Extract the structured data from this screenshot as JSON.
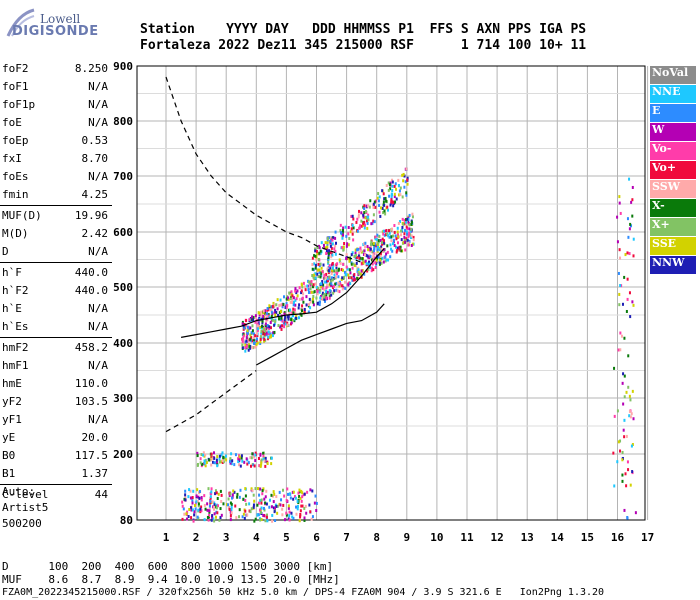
{
  "logo": {
    "line1": "Lowell",
    "line2": "DIGISONDE"
  },
  "header": {
    "line1": "Station    YYYY DAY   DDD HHMMSS P1  FFS S AXN PPS IGA PS",
    "line2": "Fortaleza 2022 Dez11 345 215000 RSF      1 714 100 10+ 11"
  },
  "params": [
    {
      "label": "foF2",
      "value": "8.250"
    },
    {
      "label": "foF1",
      "value": "N/A"
    },
    {
      "label": "foF1p",
      "value": "N/A"
    },
    {
      "label": "foE",
      "value": "N/A"
    },
    {
      "label": "foEp",
      "value": "0.53"
    },
    {
      "label": "fxI",
      "value": "8.70"
    },
    {
      "label": "foEs",
      "value": "N/A"
    },
    {
      "label": "fmin",
      "value": "4.25"
    },
    {
      "sep": true
    },
    {
      "label": "MUF(D)",
      "value": "19.96"
    },
    {
      "label": "M(D)",
      "value": "2.42"
    },
    {
      "label": "D",
      "value": "N/A"
    },
    {
      "sep": true
    },
    {
      "label": "h`F",
      "value": "440.0"
    },
    {
      "label": "h`F2",
      "value": "440.0"
    },
    {
      "label": "h`E",
      "value": "N/A"
    },
    {
      "label": "h`Es",
      "value": "N/A"
    },
    {
      "sep": true
    },
    {
      "label": "hmF2",
      "value": "458.2"
    },
    {
      "label": "hmF1",
      "value": "N/A"
    },
    {
      "label": "hmE",
      "value": "110.0"
    },
    {
      "label": "yF2",
      "value": "103.5"
    },
    {
      "label": "yF1",
      "value": "N/A"
    },
    {
      "label": "yE",
      "value": "20.0"
    },
    {
      "label": "B0",
      "value": "117.5"
    },
    {
      "label": "B1",
      "value": "1.37"
    },
    {
      "sep": true
    },
    {
      "label": "C-level",
      "value": "44"
    }
  ],
  "auto": {
    "line1": "Auto:",
    "line2": "Artist5",
    "line3": "500200"
  },
  "legend": [
    {
      "label": "NoVal",
      "color": "#8c8c8c"
    },
    {
      "label": "NNE",
      "color": "#1ec8ff"
    },
    {
      "label": "E",
      "color": "#2d8cff"
    },
    {
      "label": "W",
      "color": "#b400b4"
    },
    {
      "label": "Vo-",
      "color": "#ff3caa"
    },
    {
      "label": "Vo+",
      "color": "#f00a3c"
    },
    {
      "label": "SSW",
      "color": "#ffaaaa"
    },
    {
      "label": "X-",
      "color": "#0a7a0a"
    },
    {
      "label": "X+",
      "color": "#82c364"
    },
    {
      "label": "SSE",
      "color": "#d2d200"
    },
    {
      "label": "NNW",
      "color": "#1e1eb4"
    }
  ],
  "footer": {
    "line1": "D      100  200  400  600  800 1000 1500 3000 [km]",
    "line2": "MUF    8.6  8.7  8.9  9.4 10.0 10.9 13.5 20.0 [MHz]",
    "line3": "FZA0M_2022345215000.RSF / 320fx256h 50 kHz 5.0 km / DPS-4 FZA0M 904 / 3.9 S 321.6 E   Ion2Png 1.3.20"
  },
  "chart_data": {
    "type": "scatter",
    "xlabel": "",
    "ylabel": "",
    "xlim": [
      1,
      17
    ],
    "ylim": [
      80,
      900
    ],
    "xticks": [
      "1",
      "2",
      "3",
      "4",
      "5",
      "6",
      "7",
      "8",
      "9",
      "10",
      "11",
      "12",
      "13",
      "14",
      "15",
      "16",
      "17"
    ],
    "yticks": [
      "80",
      "200",
      "300",
      "400",
      "500",
      "600",
      "700",
      "800",
      "900"
    ],
    "grid": true,
    "series": [
      {
        "name": "virtual-height-trace",
        "style": "solid",
        "x": [
          1.5,
          2.0,
          2.5,
          3.0,
          3.5,
          4.0,
          4.5,
          5.0,
          5.5,
          6.0,
          6.5,
          7.0,
          7.5,
          8.0,
          8.25
        ],
        "y": [
          410,
          415,
          420,
          425,
          430,
          440,
          445,
          450,
          452,
          455,
          470,
          490,
          520,
          555,
          570
        ]
      },
      {
        "name": "profile-lower",
        "style": "solid",
        "x": [
          4.0,
          4.5,
          5.0,
          5.5,
          6.0,
          6.5,
          7.0,
          7.5,
          8.0,
          8.25
        ],
        "y": [
          360,
          375,
          390,
          405,
          415,
          425,
          435,
          440,
          455,
          470
        ]
      },
      {
        "name": "profile-upper",
        "style": "dashed",
        "x": [
          1.0,
          1.5,
          2.0,
          2.5,
          3.0,
          3.5,
          4.0,
          4.5,
          5.0,
          5.5,
          6.0,
          6.5,
          7.0,
          7.5
        ],
        "y": [
          880,
          800,
          740,
          700,
          670,
          650,
          630,
          615,
          600,
          590,
          575,
          565,
          555,
          545
        ]
      },
      {
        "name": "profile-bottom",
        "style": "dashed",
        "x": [
          1.0,
          1.5,
          2.0,
          2.5,
          3.0,
          3.5,
          4.0
        ],
        "y": [
          240,
          255,
          270,
          290,
          310,
          330,
          350
        ]
      }
    ],
    "echo_clusters": [
      {
        "label": "F-trace",
        "x": [
          3.5,
          9.2
        ],
        "y": [
          400,
          620
        ],
        "count": 900
      },
      {
        "label": "F-spread",
        "x": [
          5.8,
          9.0
        ],
        "y": [
          560,
          730
        ],
        "count": 260
      },
      {
        "label": "E-echo",
        "x": [
          2.0,
          4.5
        ],
        "y": [
          180,
          205
        ],
        "count": 120
      },
      {
        "label": "low-echo",
        "x": [
          1.5,
          6.0
        ],
        "y": [
          80,
          140
        ],
        "count": 320
      },
      {
        "label": "high-freq",
        "x": [
          15.8,
          16.6
        ],
        "y": [
          80,
          700
        ],
        "count": 90
      }
    ]
  }
}
